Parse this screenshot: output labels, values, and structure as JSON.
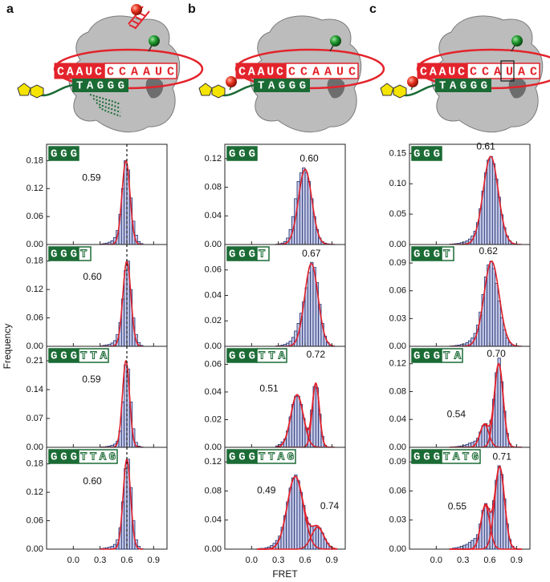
{
  "xlabel": "FRET",
  "ylabel": "Frequency",
  "diagrams": [
    {
      "label": "a",
      "rna": [
        "CAAUC",
        "CCAAUC"
      ],
      "dna": "TAGGG"
    },
    {
      "label": "b",
      "rna": [
        "CAAUC",
        "CCAAUC"
      ],
      "dna": "TAGGG"
    },
    {
      "label": "c",
      "rna": [
        "CAAUC",
        "CCAUAC"
      ],
      "dna": "TAGGG"
    }
  ],
  "chart_data": [
    {
      "type": "histogram",
      "tag": [
        "GGG"
      ],
      "color": "#c5c9e8",
      "fit_color": "#e0202a",
      "ref_line": 0.6,
      "bins": [
        0.3,
        0.33,
        0.36,
        0.39,
        0.42,
        0.45,
        0.48,
        0.51,
        0.54,
        0.57,
        0.6,
        0.63,
        0.66,
        0.69,
        0.72,
        0.75,
        0.78
      ],
      "values": [
        0.001,
        0.002,
        0.003,
        0.005,
        0.008,
        0.015,
        0.03,
        0.065,
        0.12,
        0.18,
        0.16,
        0.1,
        0.05,
        0.02,
        0.006,
        0.002
      ],
      "fits": [
        {
          "mean": 0.59,
          "amp": 0.18,
          "sd": 0.045
        }
      ],
      "xlim": [
        -0.3,
        1.05
      ],
      "xticks": [
        {
          "value": 0,
          "label": "0.0"
        },
        0.3,
        0.6,
        0.9
      ],
      "ylim": [
        0,
        0.215
      ],
      "yticks": [
        {
          "value": 0,
          "label": "0.00"
        },
        0.06,
        0.12,
        0.18
      ]
    },
    {
      "type": "histogram",
      "tag": [
        "GGG",
        "T"
      ],
      "color": "#c5c9e8",
      "fit_color": "#e0202a",
      "ref_line": 0.6,
      "bins": [
        0.3,
        0.33,
        0.36,
        0.39,
        0.42,
        0.45,
        0.48,
        0.51,
        0.54,
        0.57,
        0.6,
        0.63,
        0.66,
        0.69,
        0.72,
        0.75,
        0.78
      ],
      "values": [
        0.001,
        0.002,
        0.003,
        0.004,
        0.007,
        0.012,
        0.025,
        0.05,
        0.1,
        0.16,
        0.18,
        0.12,
        0.06,
        0.025,
        0.008,
        0.002
      ],
      "fits": [
        {
          "mean": 0.6,
          "label": "0.60",
          "amp": 0.18,
          "sd": 0.045
        }
      ],
      "xlim": [
        -0.3,
        1.05
      ],
      "xticks": [
        {
          "value": 0,
          "label": "0.0"
        },
        0.3,
        0.6,
        0.9
      ],
      "ylim": [
        0,
        0.215
      ],
      "yticks": [
        {
          "value": 0,
          "label": "0.00"
        },
        0.06,
        0.12,
        0.18
      ]
    },
    {
      "type": "histogram",
      "tag": [
        "GGG",
        "TTA"
      ],
      "color": "#c5c9e8",
      "fit_color": "#e0202a",
      "ref_line": 0.6,
      "bins": [
        0.3,
        0.33,
        0.36,
        0.39,
        0.42,
        0.45,
        0.48,
        0.51,
        0.54,
        0.57,
        0.6,
        0.63,
        0.66,
        0.69,
        0.72,
        0.75,
        0.78
      ],
      "values": [
        0.001,
        0.001,
        0.002,
        0.003,
        0.005,
        0.008,
        0.015,
        0.04,
        0.11,
        0.2,
        0.19,
        0.11,
        0.045,
        0.012,
        0.003,
        0.001
      ],
      "fits": [
        {
          "mean": 0.59,
          "amp": 0.21,
          "sd": 0.04
        }
      ],
      "xlim": [
        -0.3,
        1.05
      ],
      "xticks": [
        {
          "value": 0,
          "label": "0.0"
        },
        0.3,
        0.6,
        0.9
      ],
      "ylim": [
        0,
        0.245
      ],
      "yticks": [
        {
          "value": 0,
          "label": "0.00"
        },
        0.07,
        0.14,
        0.21
      ]
    },
    {
      "type": "histogram",
      "tag": [
        "GGG",
        "TTAG"
      ],
      "color": "#c5c9e8",
      "fit_color": "#e0202a",
      "ref_line": 0.6,
      "bins": [
        0.3,
        0.33,
        0.36,
        0.39,
        0.42,
        0.45,
        0.48,
        0.51,
        0.54,
        0.57,
        0.6,
        0.63,
        0.66,
        0.69,
        0.72,
        0.75,
        0.78
      ],
      "values": [
        0.001,
        0.002,
        0.003,
        0.004,
        0.006,
        0.01,
        0.02,
        0.045,
        0.1,
        0.17,
        0.19,
        0.13,
        0.06,
        0.02,
        0.006,
        0.001
      ],
      "fits": [
        {
          "mean": 0.6,
          "label": "0.60",
          "amp": 0.19,
          "sd": 0.042
        }
      ],
      "xlim": [
        -0.3,
        1.05
      ],
      "xticks": [
        {
          "value": 0,
          "label": "0.0"
        },
        0.3,
        0.6,
        0.9
      ],
      "ylim": [
        0,
        0.215
      ],
      "yticks": [
        {
          "value": 0,
          "label": "0.00"
        },
        0.06,
        0.12,
        0.18
      ]
    },
    {
      "type": "histogram",
      "tag": [
        "GGG"
      ],
      "color": "#c5c9e8",
      "fit_color": "#e0202a",
      "bins": [
        0.27,
        0.3,
        0.33,
        0.36,
        0.39,
        0.42,
        0.45,
        0.48,
        0.51,
        0.54,
        0.57,
        0.6,
        0.63,
        0.66,
        0.69,
        0.72,
        0.75,
        0.78,
        0.81,
        0.84,
        0.87,
        0.9,
        0.93
      ],
      "values": [
        0.0005,
        0.001,
        0.002,
        0.004,
        0.009,
        0.021,
        0.039,
        0.064,
        0.088,
        0.1,
        0.107,
        0.1,
        0.088,
        0.064,
        0.039,
        0.021,
        0.009,
        0.004,
        0.002,
        0.001,
        0.0005,
        0.0003
      ],
      "fits": [
        {
          "mean": 0.6,
          "label": "0.60",
          "amp": 0.105,
          "sd": 0.075
        }
      ],
      "xlim": [
        -0.3,
        1.05
      ],
      "xticks": [
        {
          "value": 0,
          "label": "0.0"
        },
        0.3,
        0.6,
        0.9
      ],
      "ylim": [
        0,
        0.14
      ],
      "yticks": [
        {
          "value": 0,
          "label": "0.00"
        },
        0.04,
        0.08,
        0.12
      ]
    },
    {
      "type": "histogram",
      "tag": [
        "GGG",
        "T"
      ],
      "color": "#c5c9e8",
      "fit_color": "#e0202a",
      "bins": [
        0.27,
        0.3,
        0.33,
        0.36,
        0.39,
        0.42,
        0.45,
        0.48,
        0.51,
        0.54,
        0.57,
        0.6,
        0.63,
        0.66,
        0.69,
        0.72,
        0.75,
        0.78,
        0.81,
        0.84,
        0.87,
        0.9,
        0.93
      ],
      "values": [
        0.0003,
        0.0005,
        0.001,
        0.0015,
        0.0025,
        0.004,
        0.007,
        0.012,
        0.018,
        0.026,
        0.035,
        0.046,
        0.058,
        0.066,
        0.062,
        0.05,
        0.033,
        0.018,
        0.008,
        0.003,
        0.001,
        0.0003
      ],
      "fits": [
        {
          "mean": 0.67,
          "amp": 0.065,
          "sd": 0.075
        }
      ],
      "xlim": [
        -0.3,
        1.05
      ],
      "xticks": [
        {
          "value": 0,
          "label": "0.0"
        },
        0.3,
        0.6,
        0.9
      ],
      "ylim": [
        0,
        0.08
      ],
      "yticks": [
        {
          "value": 0,
          "label": "0.00"
        },
        0.02,
        0.04,
        0.06
      ]
    },
    {
      "type": "histogram",
      "tag": [
        "GGG",
        "TTA"
      ],
      "color": "#c5c9e8",
      "fit_color": "#e0202a",
      "bins": [
        0.27,
        0.3,
        0.33,
        0.36,
        0.39,
        0.42,
        0.45,
        0.48,
        0.51,
        0.54,
        0.57,
        0.6,
        0.63,
        0.66,
        0.69,
        0.72,
        0.75,
        0.78,
        0.81,
        0.84,
        0.87,
        0.9,
        0.93
      ],
      "values": [
        0.001,
        0.002,
        0.004,
        0.006,
        0.012,
        0.022,
        0.031,
        0.037,
        0.037,
        0.031,
        0.021,
        0.014,
        0.014,
        0.027,
        0.044,
        0.043,
        0.024,
        0.008,
        0.0015,
        0.0002,
        0,
        0
      ],
      "fits": [
        {
          "mean": 0.51,
          "amp": 0.038,
          "sd": 0.07
        },
        {
          "mean": 0.72,
          "amp": 0.046,
          "sd": 0.04
        }
      ],
      "xlim": [
        -0.3,
        1.05
      ],
      "xticks": [
        {
          "value": 0,
          "label": "0.0"
        },
        0.3,
        0.6,
        0.9
      ],
      "ylim": [
        0,
        0.073
      ],
      "yticks": [
        {
          "value": 0,
          "label": "0.00"
        },
        0.02,
        0.04,
        0.06
      ]
    },
    {
      "type": "histogram",
      "tag": [
        "GGG",
        "TTAG"
      ],
      "color": "#c5c9e8",
      "fit_color": "#e0202a",
      "bins": [
        0.06,
        0.09,
        0.12,
        0.15,
        0.18,
        0.21,
        0.24,
        0.27,
        0.3,
        0.33,
        0.36,
        0.39,
        0.42,
        0.45,
        0.48,
        0.51,
        0.54,
        0.57,
        0.6,
        0.63,
        0.66,
        0.69,
        0.72,
        0.75,
        0.78,
        0.81,
        0.84,
        0.87,
        0.9,
        0.93,
        0.96
      ],
      "values": [
        0.0005,
        0.001,
        0.001,
        0.002,
        0.003,
        0.005,
        0.008,
        0.012,
        0.018,
        0.03,
        0.046,
        0.065,
        0.084,
        0.098,
        0.102,
        0.094,
        0.078,
        0.06,
        0.044,
        0.035,
        0.031,
        0.032,
        0.032,
        0.029,
        0.022,
        0.014,
        0.008,
        0.004,
        0.0015,
        0.0005
      ],
      "fits": [
        {
          "mean": 0.49,
          "amp": 0.1,
          "sd": 0.09
        },
        {
          "mean": 0.74,
          "amp": 0.03,
          "sd": 0.07
        }
      ],
      "xlim": [
        -0.3,
        1.05
      ],
      "xticks": [
        {
          "value": 0,
          "label": "0.0"
        },
        0.3,
        0.6,
        0.9
      ],
      "ylim": [
        0,
        0.14
      ],
      "yticks": [
        {
          "value": 0,
          "label": "0.00"
        },
        0.04,
        0.08,
        0.12
      ]
    },
    {
      "type": "histogram",
      "tag": [
        "GGG"
      ],
      "color": "#c5c9e8",
      "fit_color": "#e0202a",
      "bins": [
        0.15,
        0.18,
        0.21,
        0.24,
        0.27,
        0.3,
        0.33,
        0.36,
        0.39,
        0.42,
        0.45,
        0.48,
        0.51,
        0.54,
        0.57,
        0.6,
        0.63,
        0.66,
        0.69,
        0.72,
        0.75,
        0.78,
        0.81,
        0.84,
        0.87,
        0.9,
        0.93,
        0.96
      ],
      "values": [
        0.0005,
        0.001,
        0.0015,
        0.002,
        0.003,
        0.004,
        0.006,
        0.009,
        0.014,
        0.022,
        0.036,
        0.059,
        0.088,
        0.118,
        0.139,
        0.145,
        0.133,
        0.108,
        0.078,
        0.049,
        0.028,
        0.014,
        0.006,
        0.0023,
        0.0008,
        0.0002,
        0
      ],
      "fits": [
        {
          "mean": 0.61,
          "amp": 0.145,
          "sd": 0.085
        }
      ],
      "xlim": [
        -0.3,
        1.05
      ],
      "xticks": [
        {
          "value": 0,
          "label": "0.0"
        },
        0.3,
        0.6,
        0.9
      ],
      "ylim": [
        0,
        0.165
      ],
      "yticks": [
        {
          "value": 0,
          "label": "0.00"
        },
        0.05,
        {
          "value": 0.1,
          "label": "0.10"
        },
        0.15
      ]
    },
    {
      "type": "histogram",
      "tag": [
        "GGG",
        "T"
      ],
      "color": "#c5c9e8",
      "fit_color": "#e0202a",
      "bins": [
        0.15,
        0.18,
        0.21,
        0.24,
        0.27,
        0.3,
        0.33,
        0.36,
        0.39,
        0.42,
        0.45,
        0.48,
        0.51,
        0.54,
        0.57,
        0.6,
        0.63,
        0.66,
        0.69,
        0.72,
        0.75,
        0.78,
        0.81,
        0.84,
        0.87,
        0.9,
        0.93,
        0.96
      ],
      "values": [
        0.0003,
        0.0006,
        0.001,
        0.0013,
        0.002,
        0.0025,
        0.004,
        0.006,
        0.009,
        0.014,
        0.023,
        0.037,
        0.056,
        0.075,
        0.088,
        0.092,
        0.084,
        0.068,
        0.049,
        0.031,
        0.018,
        0.009,
        0.004,
        0.0015,
        0.0005,
        0.0001,
        0
      ],
      "fits": [
        {
          "mean": 0.62,
          "amp": 0.092,
          "sd": 0.085
        }
      ],
      "xlim": [
        -0.3,
        1.05
      ],
      "xticks": [
        {
          "value": 0,
          "label": "0.0"
        },
        0.3,
        0.6,
        0.9
      ],
      "ylim": [
        0,
        0.11
      ],
      "yticks": [
        {
          "value": 0,
          "label": "0.00"
        },
        0.03,
        0.06,
        0.09
      ]
    },
    {
      "type": "histogram",
      "tag": [
        "GGG",
        "TA"
      ],
      "color": "#c5c9e8",
      "fit_color": "#e0202a",
      "bins": [
        0.15,
        0.18,
        0.21,
        0.24,
        0.27,
        0.3,
        0.33,
        0.36,
        0.39,
        0.42,
        0.45,
        0.48,
        0.51,
        0.54,
        0.57,
        0.6,
        0.63,
        0.66,
        0.69,
        0.72,
        0.75,
        0.78,
        0.81,
        0.84,
        0.87,
        0.9,
        0.93,
        0.96
      ],
      "values": [
        0.0003,
        0.0005,
        0.001,
        0.0015,
        0.002,
        0.003,
        0.004,
        0.006,
        0.007,
        0.009,
        0.013,
        0.022,
        0.031,
        0.034,
        0.031,
        0.039,
        0.069,
        0.107,
        0.128,
        0.094,
        0.052,
        0.02,
        0.005,
        0.001,
        0.0002,
        0,
        0
      ],
      "fits": [
        {
          "mean": 0.54,
          "amp": 0.033,
          "sd": 0.05
        },
        {
          "mean": 0.7,
          "label": "0.70",
          "amp": 0.12,
          "sd": 0.05
        }
      ],
      "xlim": [
        -0.3,
        1.05
      ],
      "xticks": [
        {
          "value": 0,
          "label": "0.0"
        },
        0.3,
        0.6,
        0.9
      ],
      "ylim": [
        0,
        0.145
      ],
      "yticks": [
        {
          "value": 0,
          "label": "0.00"
        },
        0.04,
        0.08,
        0.12
      ]
    },
    {
      "type": "histogram",
      "tag": [
        "GGG",
        "TATG"
      ],
      "color": "#c5c9e8",
      "fit_color": "#e0202a",
      "bins": [
        0.15,
        0.18,
        0.21,
        0.24,
        0.27,
        0.3,
        0.33,
        0.36,
        0.39,
        0.42,
        0.45,
        0.48,
        0.51,
        0.54,
        0.57,
        0.6,
        0.63,
        0.66,
        0.69,
        0.72,
        0.75,
        0.78,
        0.81,
        0.84,
        0.87,
        0.9,
        0.93,
        0.96
      ],
      "values": [
        0.0005,
        0.001,
        0.0015,
        0.002,
        0.003,
        0.004,
        0.005,
        0.007,
        0.009,
        0.011,
        0.015,
        0.026,
        0.04,
        0.047,
        0.042,
        0.038,
        0.05,
        0.071,
        0.086,
        0.077,
        0.052,
        0.026,
        0.01,
        0.003,
        0.0006,
        0.0001,
        0
      ],
      "fits": [
        {
          "mean": 0.55,
          "amp": 0.045,
          "sd": 0.05
        },
        {
          "mean": 0.71,
          "amp": 0.085,
          "sd": 0.055
        }
      ],
      "xlim": [
        -0.3,
        1.05
      ],
      "xticks": [
        {
          "value": 0,
          "label": "0.0"
        },
        0.3,
        0.6,
        0.9
      ],
      "ylim": [
        0,
        0.105
      ],
      "yticks": [
        {
          "value": 0,
          "label": "0.00"
        },
        0.03,
        0.06,
        0.09
      ]
    }
  ]
}
